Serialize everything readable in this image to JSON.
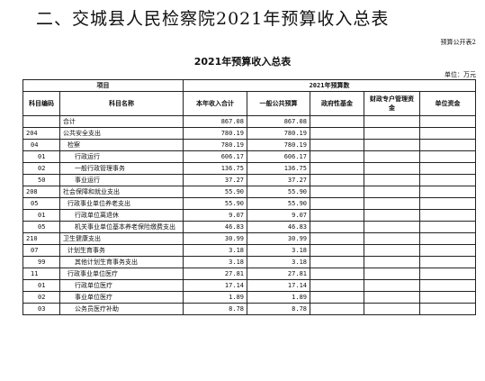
{
  "heading": "二、交城县人民检察院2021年预算收入总表",
  "form_no": "预算公开表2",
  "table_title": "2021年预算收入总表",
  "unit": "单位：万元",
  "header": {
    "group_item": "项目",
    "group_budget": "2021年预算数",
    "code": "科目编码",
    "name": "科目名称",
    "total": "本年收入合计",
    "general": "一般公共预算",
    "fund": "政府性基金",
    "special": "财政专户管理资金",
    "unit_funds": "单位资金"
  },
  "rows": [
    {
      "code": "",
      "name": "合计",
      "total": "867.08",
      "general": "867.08",
      "indent": 0
    },
    {
      "code": "204",
      "name": "公共安全支出",
      "total": "780.19",
      "general": "780.19",
      "indent": 0
    },
    {
      "code": "04",
      "name": "检察",
      "total": "780.19",
      "general": "780.19",
      "indent": 1
    },
    {
      "code": "01",
      "name": "行政运行",
      "total": "606.17",
      "general": "606.17",
      "indent": 2
    },
    {
      "code": "02",
      "name": "一般行政管理事务",
      "total": "136.75",
      "general": "136.75",
      "indent": 2
    },
    {
      "code": "50",
      "name": "事业运行",
      "total": "37.27",
      "general": "37.27",
      "indent": 2
    },
    {
      "code": "208",
      "name": "社会保障和就业支出",
      "total": "55.90",
      "general": "55.90",
      "indent": 0
    },
    {
      "code": "05",
      "name": "行政事业单位养老支出",
      "total": "55.90",
      "general": "55.90",
      "indent": 1
    },
    {
      "code": "01",
      "name": "行政单位离退休",
      "total": "9.07",
      "general": "9.07",
      "indent": 2
    },
    {
      "code": "05",
      "name": "机关事业单位基本养老保险缴费支出",
      "total": "46.83",
      "general": "46.83",
      "indent": 2
    },
    {
      "code": "210",
      "name": "卫生健康支出",
      "total": "30.99",
      "general": "30.99",
      "indent": 0
    },
    {
      "code": "07",
      "name": "计划生育事务",
      "total": "3.18",
      "general": "3.18",
      "indent": 1
    },
    {
      "code": "99",
      "name": "其他计划生育事务支出",
      "total": "3.18",
      "general": "3.18",
      "indent": 2
    },
    {
      "code": "11",
      "name": "行政事业单位医疗",
      "total": "27.81",
      "general": "27.81",
      "indent": 1
    },
    {
      "code": "01",
      "name": "行政单位医疗",
      "total": "17.14",
      "general": "17.14",
      "indent": 2
    },
    {
      "code": "02",
      "name": "事业单位医疗",
      "total": "1.89",
      "general": "1.89",
      "indent": 2
    },
    {
      "code": "03",
      "name": "公务员医疗补助",
      "total": "8.78",
      "general": "8.78",
      "indent": 2
    }
  ]
}
